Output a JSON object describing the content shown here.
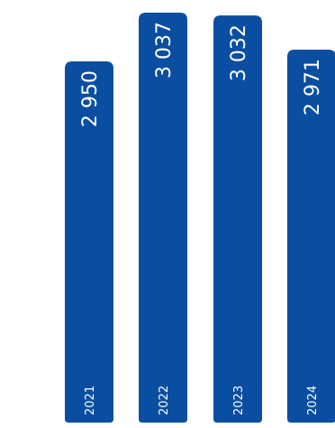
{
  "chart_data": {
    "type": "bar",
    "orientation": "vertical",
    "categories": [
      "2021",
      "2022",
      "2023",
      "2024"
    ],
    "values": [
      2950,
      3037,
      3032,
      2971
    ],
    "value_labels": [
      "2 950",
      "3 037",
      "3 032",
      "2 971"
    ],
    "title": "",
    "xlabel": "",
    "ylabel": "",
    "grid": false,
    "legend": "none",
    "colors": {
      "bar": "#0a4ea2",
      "label": "#ffffff"
    }
  }
}
